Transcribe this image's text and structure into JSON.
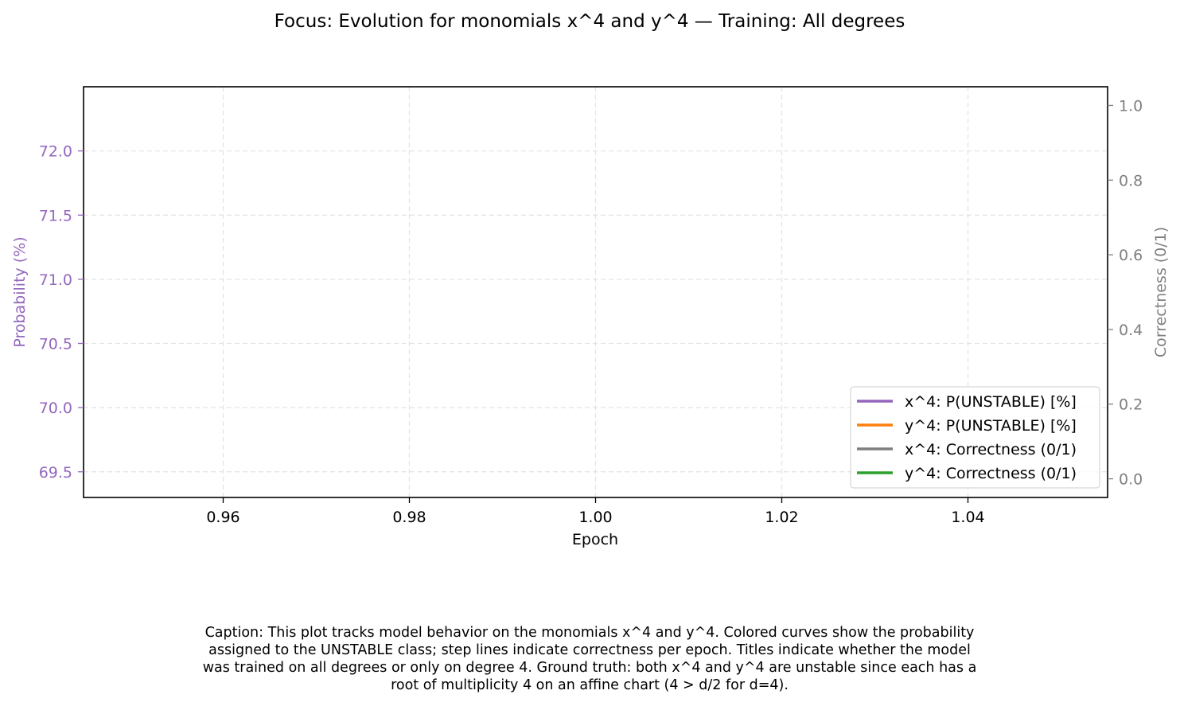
{
  "chart_data": {
    "type": "line",
    "title": "Focus: Evolution for monomials x^4 and y^4 — Training: All degrees",
    "xlabel": "Epoch",
    "ylabel_left": "Probability (%)",
    "ylabel_right": "Correctness (0/1)",
    "xlim": [
      0.945,
      1.055
    ],
    "ylim_left": [
      69.3,
      72.5
    ],
    "ylim_right": [
      -0.05,
      1.05
    ],
    "x_ticks": [
      {
        "value": 0.96,
        "label": "0.96"
      },
      {
        "value": 0.98,
        "label": "0.98"
      },
      {
        "value": 1.0,
        "label": "1.00"
      },
      {
        "value": 1.02,
        "label": "1.02"
      },
      {
        "value": 1.04,
        "label": "1.04"
      }
    ],
    "y_left_ticks": [
      {
        "value": 69.5,
        "label": "69.5"
      },
      {
        "value": 70.0,
        "label": "70.0"
      },
      {
        "value": 70.5,
        "label": "70.5"
      },
      {
        "value": 71.0,
        "label": "71.0"
      },
      {
        "value": 71.5,
        "label": "71.5"
      },
      {
        "value": 72.0,
        "label": "72.0"
      }
    ],
    "y_right_ticks": [
      {
        "value": 0.0,
        "label": "0.0"
      },
      {
        "value": 0.2,
        "label": "0.2"
      },
      {
        "value": 0.4,
        "label": "0.4"
      },
      {
        "value": 0.6,
        "label": "0.6"
      },
      {
        "value": 0.8,
        "label": "0.8"
      },
      {
        "value": 1.0,
        "label": "1.0"
      }
    ],
    "grid": true,
    "legend_position": "lower-right",
    "series": [
      {
        "name": "x^4: P(UNSTABLE) [%]",
        "color": "#9467bd",
        "axis": "left",
        "x": [],
        "values": []
      },
      {
        "name": "y^4: P(UNSTABLE) [%]",
        "color": "#ff7f0e",
        "axis": "left",
        "x": [],
        "values": []
      },
      {
        "name": "x^4: Correctness (0/1)",
        "color": "#7f7f7f",
        "axis": "right",
        "x": [],
        "values": []
      },
      {
        "name": "y^4: Correctness (0/1)",
        "color": "#2ca02c",
        "axis": "right",
        "x": [],
        "values": []
      }
    ],
    "colors": {
      "left_axis": "#9467bd",
      "right_axis": "#808080"
    }
  },
  "caption": "Caption: This plot tracks model behavior on the monomials x^4 and y^4. Colored curves show the probability\nassigned to the UNSTABLE class; step lines indicate correctness per epoch. Titles indicate whether the model\nwas trained on all degrees or only on degree 4. Ground truth: both x^4 and y^4 are unstable since each has a\nroot of multiplicity 4 on an affine chart (4 > d/2 for d=4)."
}
